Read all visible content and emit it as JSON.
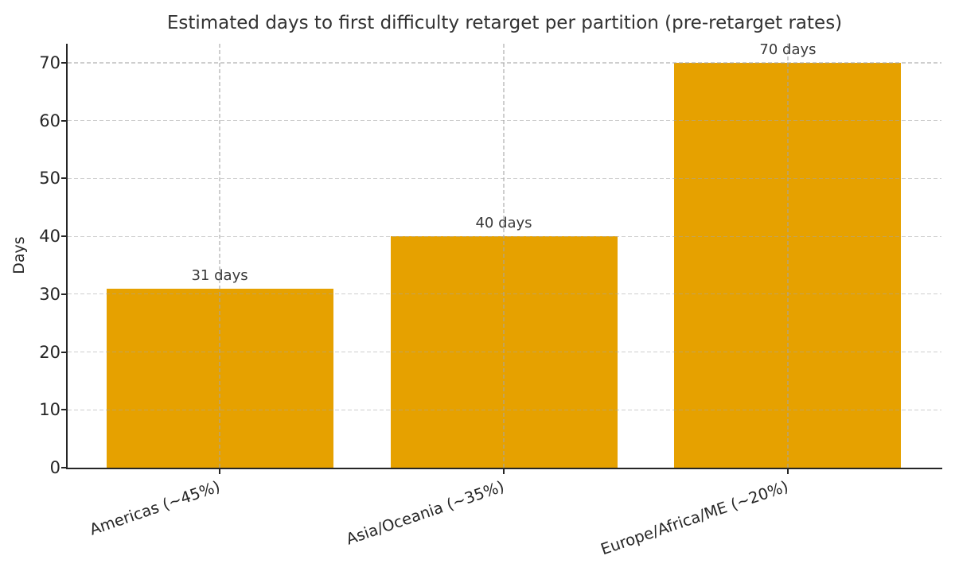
{
  "chart_data": {
    "type": "bar",
    "title": "Estimated days to first difficulty retarget per partition (pre-retarget rates)",
    "xlabel": "",
    "ylabel": "Days",
    "categories": [
      "Americas (~45%)",
      "Asia/Oceania (~35%)",
      "Europe/Africa/ME (~20%)"
    ],
    "values": [
      31,
      40,
      70
    ],
    "bar_labels": [
      "31 days",
      "40 days",
      "70 days"
    ],
    "yticks": [
      0,
      10,
      20,
      30,
      40,
      50,
      60,
      70
    ],
    "ylim": [
      0,
      73.3
    ],
    "grid": {
      "style": "dashed",
      "horizontal": true,
      "vertical": true,
      "drawn_over_bars": true
    },
    "legend": "none",
    "colors": {
      "bar": "#E6A100",
      "grid": "rgba(165,165,165,0.55)",
      "spine": "#262626",
      "title_text": "#333333",
      "axis_text": "#262626",
      "value_text": "#3a3a3a",
      "background": "#ffffff"
    }
  }
}
